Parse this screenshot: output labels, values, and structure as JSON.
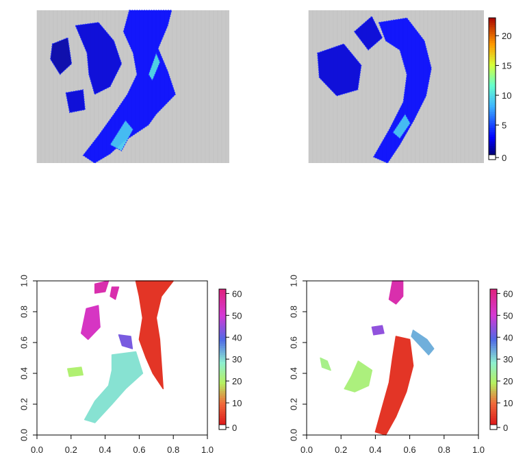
{
  "figure": {
    "background": "#ffffff"
  },
  "chart_data": [
    {
      "type": "heatmap",
      "title": "",
      "background_color": "#c8c8c8",
      "description_color_scale": "blue-cyan-green-yellow-red",
      "show_axes": false,
      "blobs": [
        {
          "points": [
            [
              0.48,
              1.0
            ],
            [
              0.7,
              1.0
            ],
            [
              0.68,
              0.9
            ],
            [
              0.63,
              0.75
            ],
            [
              0.68,
              0.6
            ],
            [
              0.72,
              0.45
            ],
            [
              0.62,
              0.32
            ],
            [
              0.58,
              0.25
            ],
            [
              0.45,
              0.14
            ],
            [
              0.38,
              0.06
            ],
            [
              0.3,
              0.0
            ],
            [
              0.24,
              0.05
            ],
            [
              0.32,
              0.18
            ],
            [
              0.4,
              0.32
            ],
            [
              0.47,
              0.45
            ],
            [
              0.52,
              0.58
            ],
            [
              0.5,
              0.72
            ],
            [
              0.45,
              0.86
            ]
          ],
          "value": 3
        },
        {
          "points": [
            [
              0.2,
              0.9
            ],
            [
              0.32,
              0.92
            ],
            [
              0.4,
              0.8
            ],
            [
              0.44,
              0.65
            ],
            [
              0.38,
              0.5
            ],
            [
              0.3,
              0.45
            ],
            [
              0.27,
              0.58
            ],
            [
              0.26,
              0.72
            ]
          ],
          "value": 2
        },
        {
          "points": [
            [
              0.08,
              0.78
            ],
            [
              0.16,
              0.82
            ],
            [
              0.18,
              0.65
            ],
            [
              0.12,
              0.58
            ],
            [
              0.07,
              0.68
            ]
          ],
          "value": 1
        },
        {
          "points": [
            [
              0.15,
              0.46
            ],
            [
              0.24,
              0.48
            ],
            [
              0.25,
              0.35
            ],
            [
              0.17,
              0.33
            ]
          ],
          "value": 2
        },
        {
          "points": [
            [
              0.38,
              0.12
            ],
            [
              0.46,
              0.28
            ],
            [
              0.5,
              0.22
            ],
            [
              0.44,
              0.08
            ]
          ],
          "value": 9
        },
        {
          "points": [
            [
              0.58,
              0.58
            ],
            [
              0.62,
              0.72
            ],
            [
              0.64,
              0.66
            ],
            [
              0.6,
              0.54
            ]
          ],
          "value": 10
        }
      ]
    },
    {
      "type": "heatmap",
      "title": "",
      "background_color": "#c8c8c8",
      "show_axes": false,
      "colorbar": {
        "min": 0,
        "max": 23,
        "ticks": [
          0,
          5,
          10,
          15,
          20
        ]
      },
      "blobs": [
        {
          "points": [
            [
              0.4,
              0.92
            ],
            [
              0.56,
              0.95
            ],
            [
              0.66,
              0.8
            ],
            [
              0.7,
              0.62
            ],
            [
              0.67,
              0.44
            ],
            [
              0.6,
              0.28
            ],
            [
              0.52,
              0.12
            ],
            [
              0.45,
              0.0
            ],
            [
              0.37,
              0.04
            ],
            [
              0.46,
              0.22
            ],
            [
              0.54,
              0.4
            ],
            [
              0.56,
              0.58
            ],
            [
              0.52,
              0.74
            ],
            [
              0.44,
              0.8
            ]
          ],
          "value": 3
        },
        {
          "points": [
            [
              0.05,
              0.72
            ],
            [
              0.2,
              0.78
            ],
            [
              0.3,
              0.64
            ],
            [
              0.28,
              0.48
            ],
            [
              0.16,
              0.44
            ],
            [
              0.06,
              0.56
            ]
          ],
          "value": 2
        },
        {
          "points": [
            [
              0.26,
              0.86
            ],
            [
              0.36,
              0.96
            ],
            [
              0.42,
              0.82
            ],
            [
              0.34,
              0.74
            ]
          ],
          "value": 2
        },
        {
          "points": [
            [
              0.48,
              0.2
            ],
            [
              0.55,
              0.32
            ],
            [
              0.58,
              0.26
            ],
            [
              0.52,
              0.16
            ]
          ],
          "value": 9
        }
      ]
    },
    {
      "type": "scatter",
      "title": "",
      "xlim": [
        0.0,
        1.0
      ],
      "ylim": [
        0.0,
        1.0
      ],
      "xticks": [
        "0.0",
        "0.2",
        "0.4",
        "0.6",
        "0.8",
        "1.0"
      ],
      "yticks": [
        "0.0",
        "0.2",
        "0.4",
        "0.6",
        "0.8",
        "1.0"
      ],
      "colorbar": {
        "min": 0,
        "max": 62,
        "ticks": [
          0,
          10,
          20,
          30,
          40,
          50,
          60
        ]
      },
      "regions": [
        {
          "points": [
            [
              0.58,
              1.0
            ],
            [
              0.8,
              1.0
            ],
            [
              0.73,
              0.9
            ],
            [
              0.7,
              0.76
            ],
            [
              0.72,
              0.62
            ],
            [
              0.74,
              0.3
            ],
            [
              0.68,
              0.4
            ],
            [
              0.64,
              0.5
            ],
            [
              0.6,
              0.62
            ],
            [
              0.62,
              0.76
            ],
            [
              0.6,
              0.9
            ]
          ],
          "value": 3
        },
        {
          "points": [
            [
              0.34,
              0.98
            ],
            [
              0.42,
              1.0
            ],
            [
              0.4,
              0.93
            ],
            [
              0.34,
              0.92
            ]
          ],
          "value": 55
        },
        {
          "points": [
            [
              0.44,
              0.96
            ],
            [
              0.48,
              0.96
            ],
            [
              0.46,
              0.88
            ],
            [
              0.43,
              0.9
            ]
          ],
          "value": 55
        },
        {
          "points": [
            [
              0.29,
              0.82
            ],
            [
              0.36,
              0.84
            ],
            [
              0.37,
              0.7
            ],
            [
              0.3,
              0.62
            ],
            [
              0.26,
              0.66
            ]
          ],
          "value": 52
        },
        {
          "points": [
            [
              0.48,
              0.65
            ],
            [
              0.55,
              0.64
            ],
            [
              0.56,
              0.56
            ],
            [
              0.5,
              0.58
            ]
          ],
          "value": 42
        },
        {
          "points": [
            [
              0.44,
              0.52
            ],
            [
              0.58,
              0.54
            ],
            [
              0.62,
              0.4
            ],
            [
              0.52,
              0.3
            ],
            [
              0.44,
              0.2
            ],
            [
              0.34,
              0.08
            ],
            [
              0.28,
              0.1
            ],
            [
              0.34,
              0.22
            ],
            [
              0.42,
              0.32
            ],
            [
              0.44,
              0.42
            ]
          ],
          "value": 29
        },
        {
          "points": [
            [
              0.18,
              0.43
            ],
            [
              0.26,
              0.44
            ],
            [
              0.27,
              0.39
            ],
            [
              0.19,
              0.38
            ]
          ],
          "value": 20
        }
      ]
    },
    {
      "type": "scatter",
      "title": "",
      "xlim": [
        0.0,
        1.0
      ],
      "ylim": [
        0.0,
        1.0
      ],
      "xticks": [
        "0.0",
        "0.2",
        "0.4",
        "0.6",
        "0.8",
        "1.0"
      ],
      "yticks": [
        "0.0",
        "0.2",
        "0.4",
        "0.6",
        "0.8",
        "1.0"
      ],
      "colorbar": {
        "min": 0,
        "max": 62,
        "ticks": [
          0,
          10,
          20,
          30,
          40,
          50,
          60
        ]
      },
      "regions": [
        {
          "points": [
            [
              0.52,
              0.64
            ],
            [
              0.6,
              0.62
            ],
            [
              0.62,
              0.45
            ],
            [
              0.58,
              0.28
            ],
            [
              0.52,
              0.12
            ],
            [
              0.46,
              0.0
            ],
            [
              0.4,
              0.02
            ],
            [
              0.44,
              0.18
            ],
            [
              0.48,
              0.34
            ],
            [
              0.5,
              0.5
            ]
          ],
          "value": 3
        },
        {
          "points": [
            [
              0.5,
              1.0
            ],
            [
              0.56,
              1.0
            ],
            [
              0.56,
              0.9
            ],
            [
              0.52,
              0.85
            ],
            [
              0.48,
              0.88
            ]
          ],
          "value": 55
        },
        {
          "points": [
            [
              0.38,
              0.7
            ],
            [
              0.44,
              0.71
            ],
            [
              0.45,
              0.66
            ],
            [
              0.39,
              0.65
            ]
          ],
          "value": 44
        },
        {
          "points": [
            [
              0.62,
              0.68
            ],
            [
              0.7,
              0.62
            ],
            [
              0.74,
              0.56
            ],
            [
              0.71,
              0.52
            ],
            [
              0.66,
              0.58
            ],
            [
              0.61,
              0.64
            ]
          ],
          "value": 33
        },
        {
          "points": [
            [
              0.3,
              0.48
            ],
            [
              0.38,
              0.42
            ],
            [
              0.36,
              0.32
            ],
            [
              0.28,
              0.28
            ],
            [
              0.22,
              0.3
            ],
            [
              0.26,
              0.38
            ]
          ],
          "value": 21
        },
        {
          "points": [
            [
              0.08,
              0.5
            ],
            [
              0.12,
              0.48
            ],
            [
              0.14,
              0.42
            ],
            [
              0.09,
              0.44
            ]
          ],
          "value": 22
        }
      ]
    }
  ]
}
